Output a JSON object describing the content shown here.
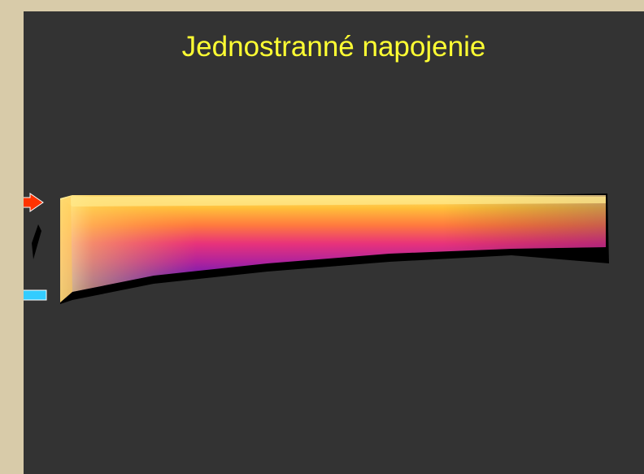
{
  "slide": {
    "title": "Jednostranné napojenie",
    "title_color": "#ffff33",
    "background_color": "#333333",
    "frame_color": "#d8cba9"
  },
  "thermogram": {
    "subject": "radiator-thermal-image",
    "palette": [
      "#ffe070",
      "#ffb030",
      "#ff6a40",
      "#e0307a",
      "#a0209a",
      "#5a1ab0",
      "#2a0a80",
      "#000000"
    ]
  },
  "arrows": {
    "supply": {
      "icon": "arrow-right-icon",
      "color": "#ff3300"
    },
    "return": {
      "icon": "arrow-left-icon",
      "color": "#33ccff"
    }
  }
}
